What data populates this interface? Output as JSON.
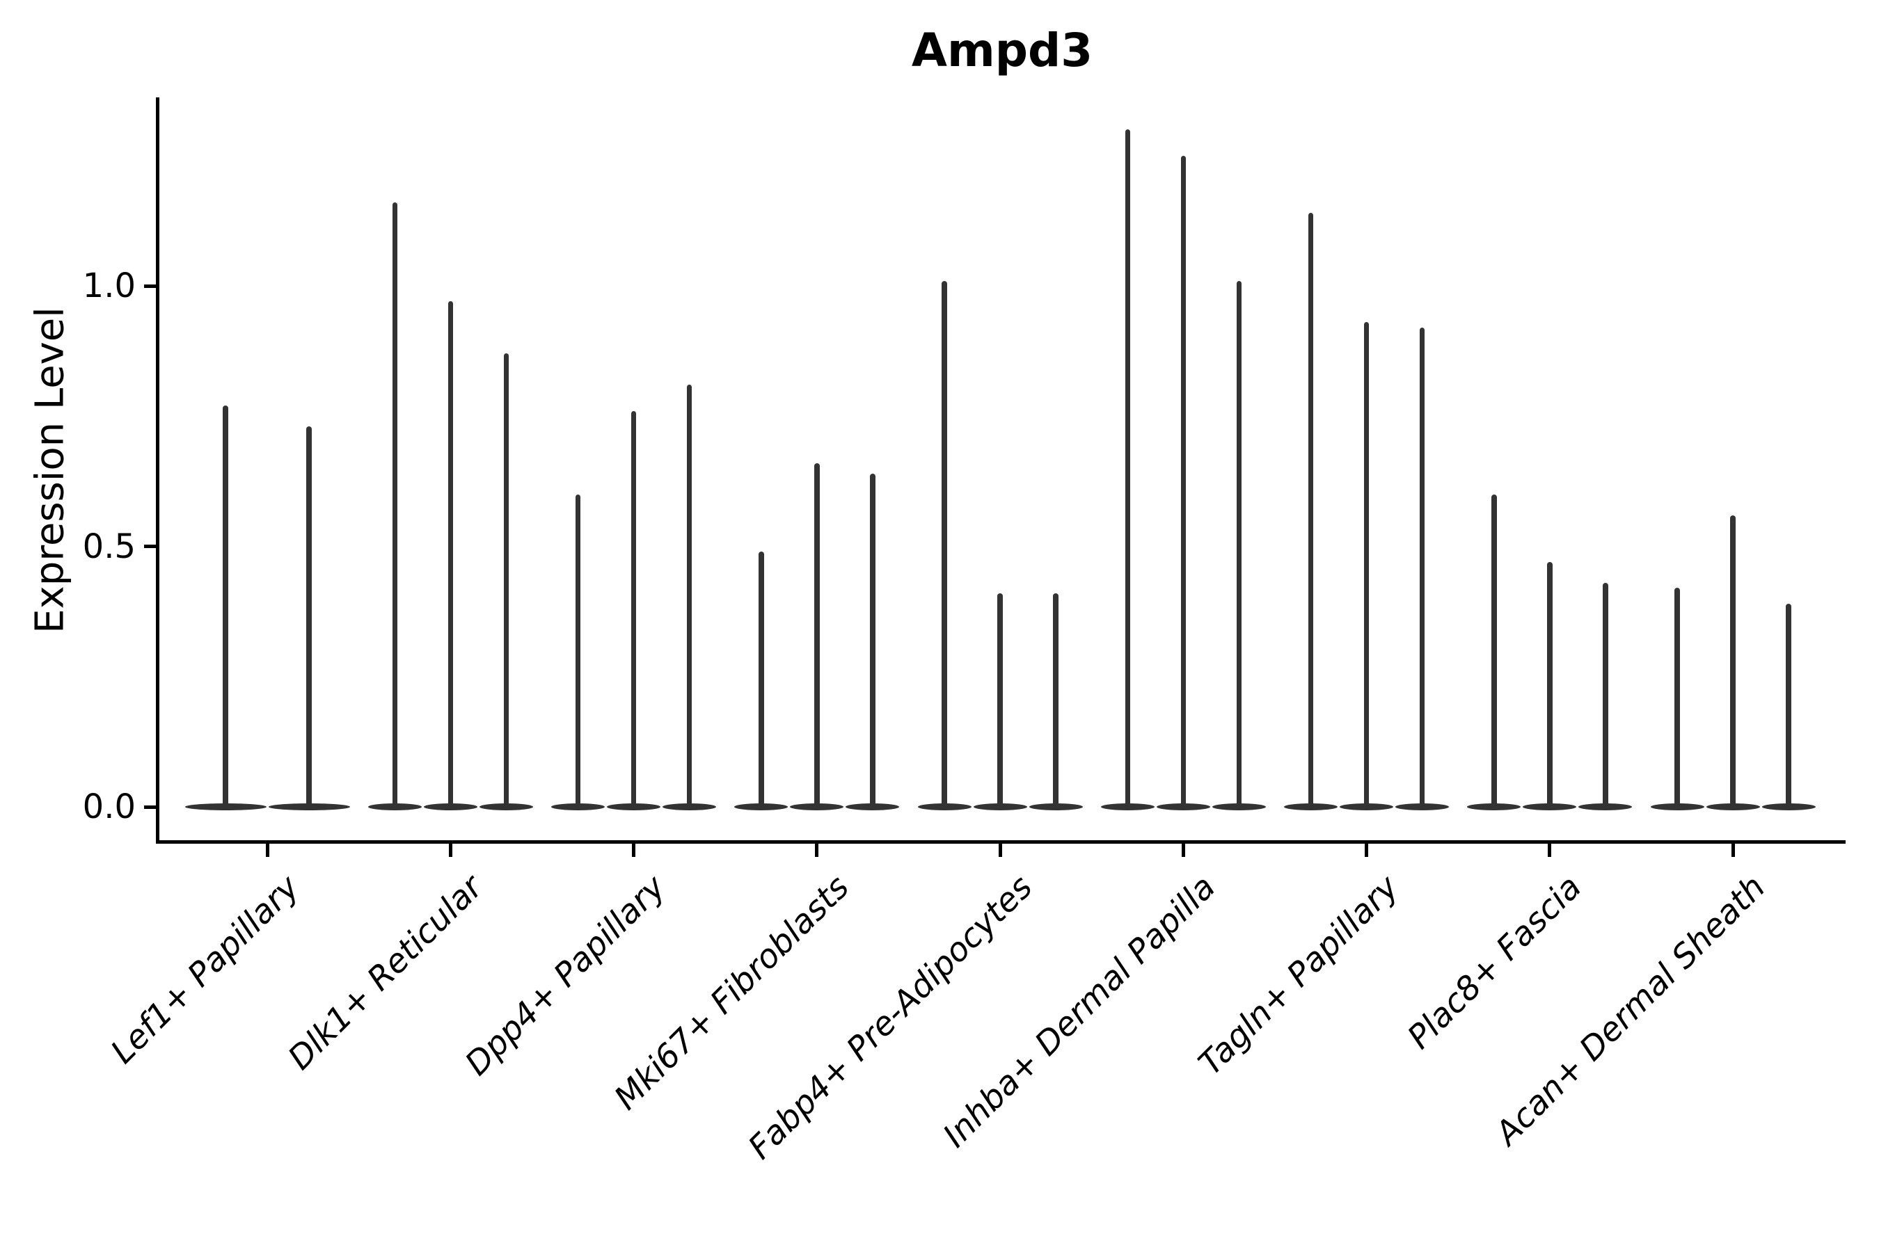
{
  "chart_data": {
    "type": "violin",
    "title": "Ampd3",
    "xlabel": "",
    "ylabel": "Expression Level",
    "ylim": [
      -0.07,
      1.36
    ],
    "yticks": [
      0.0,
      0.5,
      1.0
    ],
    "ytick_labels": [
      "0.0",
      "0.5",
      "1.0"
    ],
    "grid": false,
    "legend": false,
    "violin_shape": "zero-inflated narrow spike; wide flat density blob at 0 with thin spike up to the maximum expression value",
    "categories": [
      "Lef1+ Papillary",
      "Dlk1+ Reticular",
      "Dpp4+ Papillary",
      "Mki67+ Fibroblasts",
      "Fabp4+ Pre-Adipocytes",
      "Inhba+ Dermal Papilla",
      "Tagln+ Papillary",
      "Plac8+ Fascia",
      "Acan+ Dermal Sheath"
    ],
    "groups": [
      {
        "category": "Lef1+ Papillary",
        "violin_max": [
          0.77,
          0.73
        ]
      },
      {
        "category": "Dlk1+ Reticular",
        "violin_max": [
          1.16,
          0.97,
          0.87
        ]
      },
      {
        "category": "Dpp4+ Papillary",
        "violin_max": [
          0.6,
          0.76,
          0.81
        ]
      },
      {
        "category": "Mki67+ Fibroblasts",
        "violin_max": [
          0.49,
          0.66,
          0.64
        ]
      },
      {
        "category": "Fabp4+ Pre-Adipocytes",
        "violin_max": [
          1.01,
          0.41,
          0.41
        ]
      },
      {
        "category": "Inhba+ Dermal Papilla",
        "violin_max": [
          1.3,
          1.25,
          1.01
        ]
      },
      {
        "category": "Tagln+ Papillary",
        "violin_max": [
          1.14,
          0.93,
          0.92
        ]
      },
      {
        "category": "Plac8+ Fascia",
        "violin_max": [
          0.6,
          0.47,
          0.43
        ]
      },
      {
        "category": "Acan+ Dermal Sheath",
        "violin_max": [
          0.42,
          0.56,
          0.39
        ]
      }
    ],
    "colors": {
      "violin_fill": "#333333",
      "axis": "#000000",
      "text": "#000000",
      "background": "#ffffff"
    }
  }
}
